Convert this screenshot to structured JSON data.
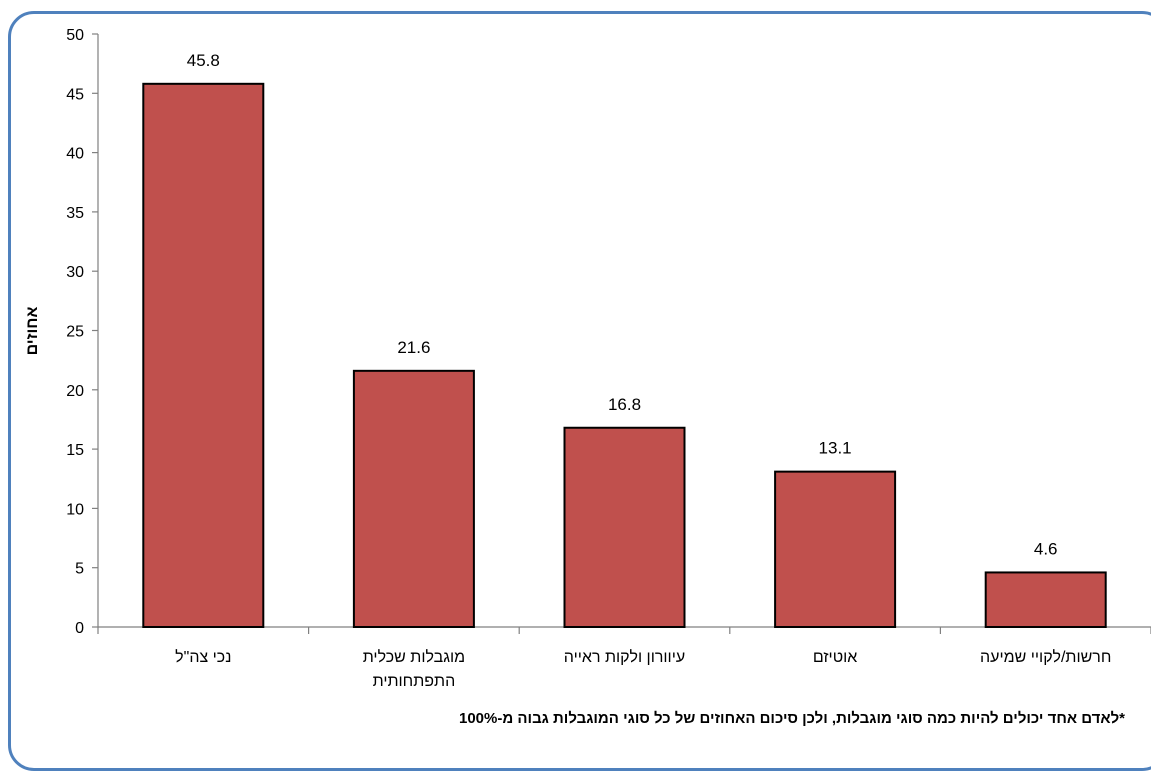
{
  "chart_data": {
    "type": "bar",
    "categories": [
      [
        "נכי צה\"ל"
      ],
      [
        "מוגבלות שכלית",
        "התפתחותית"
      ],
      [
        "עיוורון ולקות ראייה"
      ],
      [
        "אוטיזם"
      ],
      [
        "חרשות/לקויי שמיעה"
      ]
    ],
    "values": [
      45.8,
      21.6,
      16.8,
      13.1,
      4.6
    ],
    "value_labels": [
      "45.8",
      "21.6",
      "16.8",
      "13.1",
      "4.6"
    ],
    "yticks": [
      "0",
      "5",
      "10",
      "15",
      "20",
      "25",
      "30",
      "35",
      "40",
      "45",
      "50"
    ],
    "ylim": [
      0,
      50
    ],
    "ylabel": "אחוזים",
    "xlabel": "",
    "title": "",
    "grid": false,
    "bar_color": "#c0504d",
    "bar_edge_color": "#000000"
  },
  "footnote": "*לאדם אחד יכולים להיות כמה סוגי מוגבלות, ולכן סיכום האחוזים של כל סוגי המוגבלות גבוה מ-100%",
  "frame_color": "#4f81bd"
}
